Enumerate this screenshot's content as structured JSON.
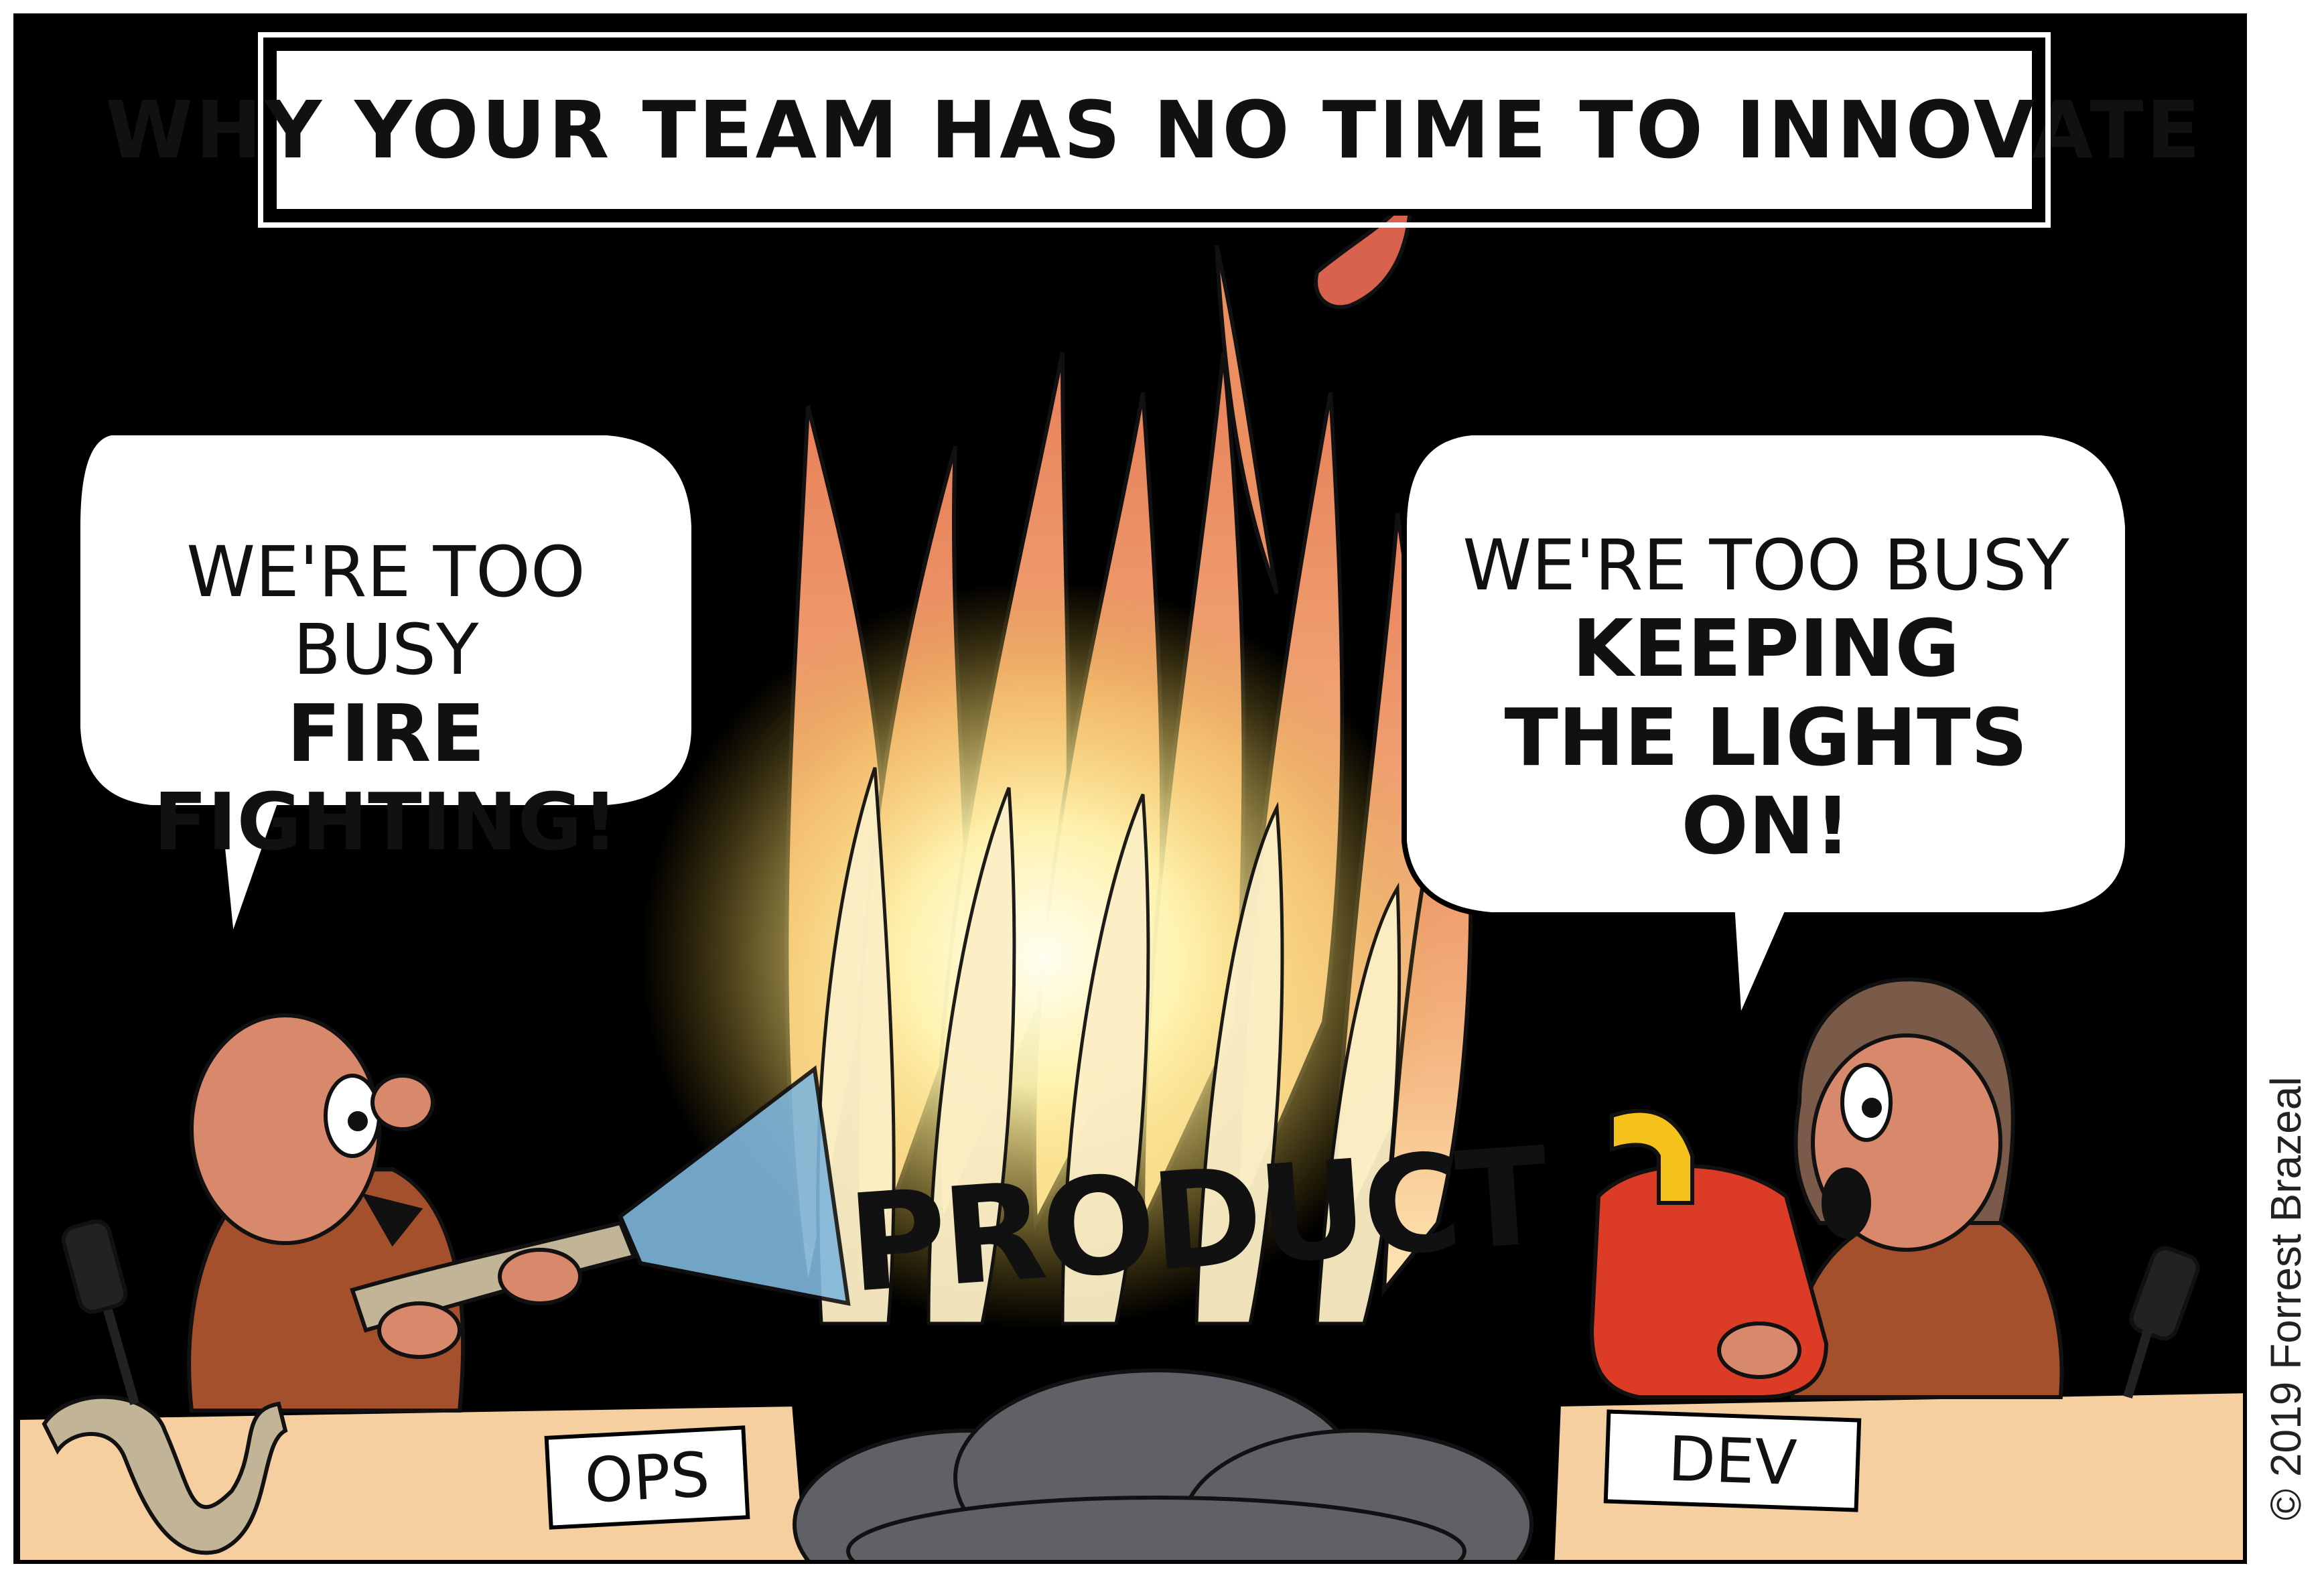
{
  "title": "WHY YOUR TEAM HAS NO TIME TO INNOVATE",
  "left_bubble": {
    "line1": "WE'RE TOO BUSY",
    "line2": "FIRE FIGHTING!"
  },
  "right_bubble": {
    "line1": "WE'RE TOO BUSY",
    "line2": "KEEPING",
    "line3": "THE LIGHTS ON!"
  },
  "center_label": "PRODUCT",
  "signs": {
    "left": "OPS",
    "right": "DEV"
  },
  "copyright": "© 2019 Forrest Brazeal",
  "colors": {
    "background": "#000000",
    "desk": "#f6cfa0",
    "flame_outer": "#ee9760",
    "flame_inner": "#fbe6a8",
    "glow": "#fff7c2",
    "smoke": "#5f6167",
    "gas_can": "#dc3c26",
    "nozzle": "#f4c21b",
    "hose": "#c2b597",
    "water": "#7fb6dc",
    "skin": "#d8896c",
    "sweater": "#a4502c",
    "hair": "#7a5a48"
  }
}
